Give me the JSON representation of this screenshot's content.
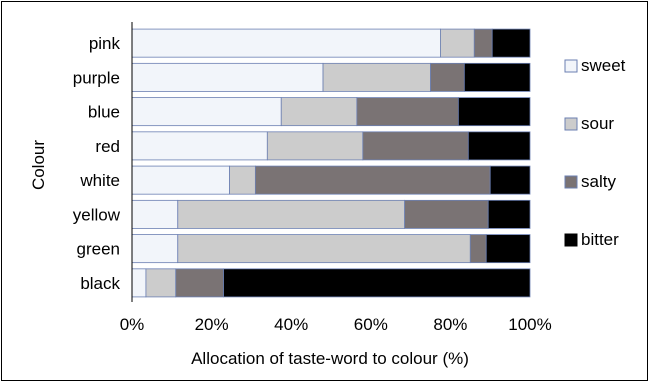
{
  "chart_data": {
    "type": "bar",
    "orientation": "horizontal",
    "stacked": true,
    "normalized_percent": true,
    "categories": [
      "pink",
      "purple",
      "blue",
      "red",
      "white",
      "yellow",
      "green",
      "black"
    ],
    "series": [
      {
        "name": "sweet",
        "color": "#f2f5fa",
        "values": [
          77.5,
          48,
          37.5,
          34,
          24.5,
          11.5,
          11.5,
          3.5
        ]
      },
      {
        "name": "sour",
        "color": "#cccccc",
        "values": [
          8.5,
          27,
          19,
          24,
          6.5,
          57,
          73.5,
          7.5
        ]
      },
      {
        "name": "salty",
        "color": "#7a7374",
        "values": [
          4.5,
          8.5,
          25.5,
          26.5,
          59,
          21,
          4,
          12
        ]
      },
      {
        "name": "bitter",
        "color": "#000000",
        "values": [
          9.5,
          16.5,
          18,
          15.5,
          10,
          10.5,
          11,
          77
        ]
      }
    ],
    "xlabel": "Allocation of taste-word to colour (%)",
    "ylabel": "Colour",
    "xlim": [
      0,
      100
    ],
    "x_ticks": [
      "0%",
      "20%",
      "40%",
      "60%",
      "80%",
      "100%"
    ],
    "legend_position": "right",
    "grid": false,
    "bar_outline_color": "#6b7fb2"
  }
}
